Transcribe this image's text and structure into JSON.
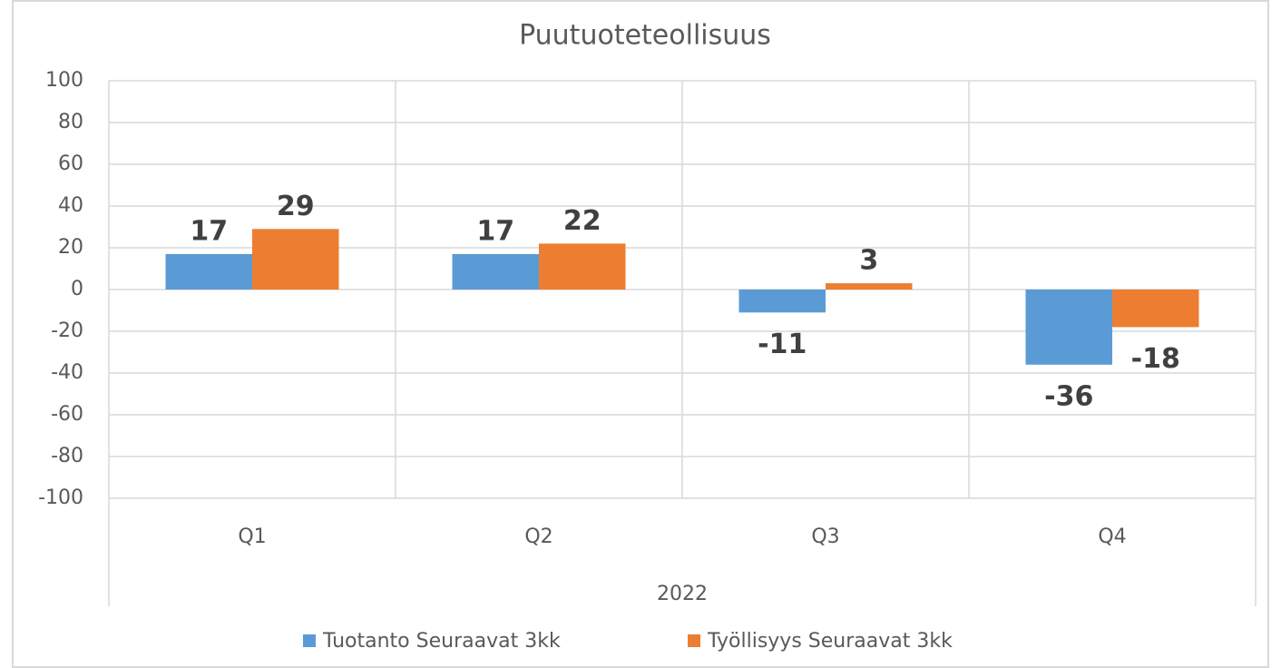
{
  "chart_data": {
    "type": "bar",
    "title": "Puutuoteteollisuus",
    "categories": [
      "Q1",
      "Q2",
      "Q3",
      "Q4"
    ],
    "category_group": "2022",
    "series": [
      {
        "name": "Tuotanto Seuraavat 3kk",
        "color": "#5b9bd5",
        "values": [
          17,
          17,
          -11,
          -36
        ]
      },
      {
        "name": "Työllisyys Seuraavat 3kk",
        "color": "#ed7d31",
        "values": [
          29,
          22,
          3,
          -18
        ]
      }
    ],
    "ylim": [
      -100,
      100
    ],
    "yticks": [
      -100,
      -80,
      -60,
      -40,
      -20,
      0,
      20,
      40,
      60,
      80,
      100
    ],
    "grid": true,
    "legend": "bottom"
  }
}
